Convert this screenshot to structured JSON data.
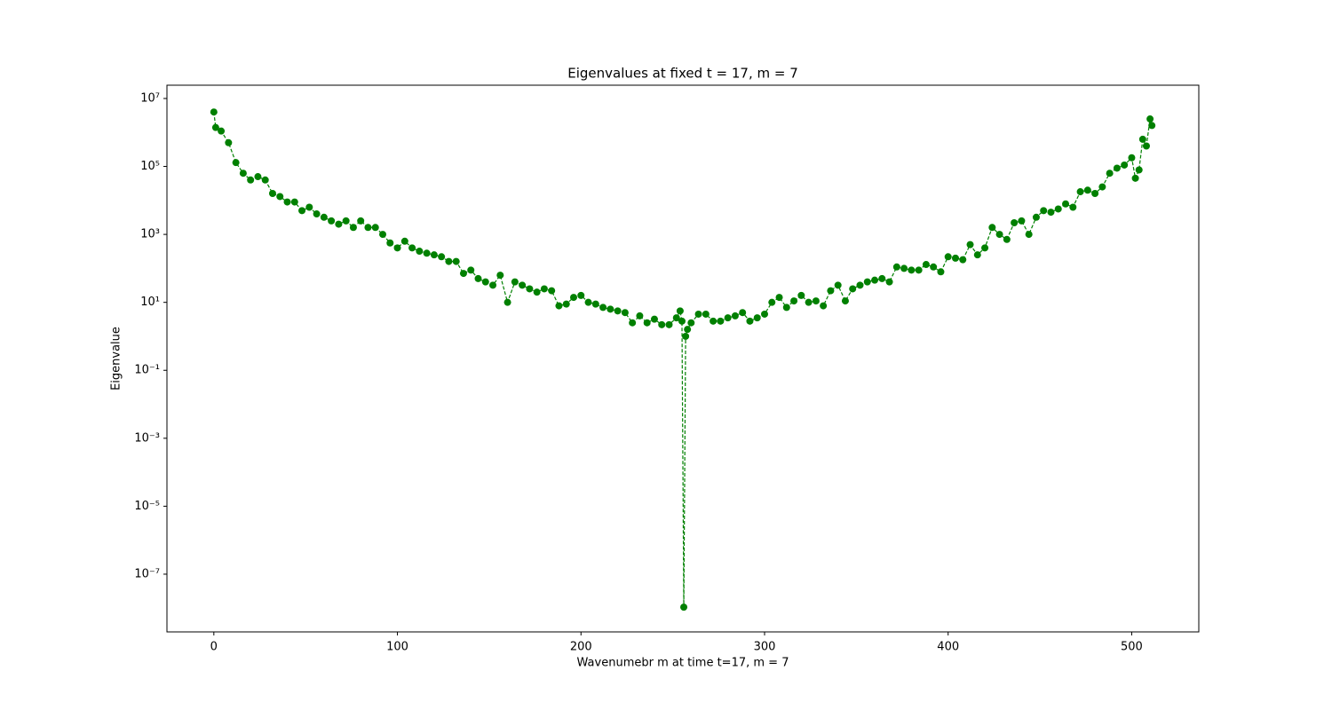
{
  "chart_data": {
    "type": "scatter-line",
    "title": "Eigenvalues at fixed t = 17, m = 7",
    "x_label": "Wavenumebr m at time t=17, m = 7",
    "y_label": "Eigenvalue",
    "color": "#008000",
    "log_y": true,
    "grid": false,
    "xlim": [
      -25.55,
      536.55
    ],
    "xticks": [
      0,
      100,
      200,
      300,
      400,
      500
    ],
    "ylim": [
      2e-09,
      24600000.0
    ],
    "yticks": [
      {
        "value": 1e-07,
        "label": "10⁻⁷"
      },
      {
        "value": 1e-05,
        "label": "10⁻⁵"
      },
      {
        "value": 0.001,
        "label": "10⁻³"
      },
      {
        "value": 0.1,
        "label": "10⁻¹"
      },
      {
        "value": 10,
        "label": "10¹"
      },
      {
        "value": 1000,
        "label": "10³"
      },
      {
        "value": 100000,
        "label": "10⁵"
      },
      {
        "value": 10000000,
        "label": "10⁷"
      }
    ],
    "x": [
      0,
      1,
      4,
      8,
      12,
      16,
      20,
      24,
      28,
      32,
      36,
      40,
      44,
      48,
      52,
      56,
      60,
      64,
      68,
      72,
      76,
      80,
      84,
      88,
      92,
      96,
      100,
      104,
      108,
      112,
      116,
      120,
      124,
      128,
      132,
      136,
      140,
      144,
      148,
      152,
      156,
      160,
      164,
      168,
      172,
      176,
      180,
      184,
      188,
      192,
      196,
      200,
      204,
      208,
      212,
      216,
      220,
      224,
      228,
      232,
      236,
      240,
      244,
      248,
      252,
      254,
      255,
      256,
      257,
      258,
      260,
      264,
      268,
      272,
      276,
      280,
      284,
      288,
      292,
      296,
      300,
      304,
      308,
      312,
      316,
      320,
      324,
      328,
      332,
      336,
      340,
      344,
      348,
      352,
      356,
      360,
      364,
      368,
      372,
      376,
      380,
      384,
      388,
      392,
      396,
      400,
      404,
      408,
      412,
      416,
      420,
      424,
      428,
      432,
      436,
      440,
      444,
      448,
      452,
      456,
      460,
      464,
      468,
      472,
      476,
      480,
      484,
      488,
      492,
      496,
      500,
      502,
      504,
      506,
      508,
      510,
      511
    ],
    "values": [
      4000000.0,
      1400000.0,
      1100000.0,
      500000.0,
      130000.0,
      63000.0,
      40000.0,
      50000.0,
      40000.0,
      16000.0,
      13000.0,
      9000.0,
      9000.0,
      5000.0,
      6300.0,
      4000.0,
      3200.0,
      2500.0,
      2000.0,
      2500.0,
      1600.0,
      2500.0,
      1600.0,
      1600.0,
      1000.0,
      560,
      400,
      630,
      400,
      320,
      280,
      250,
      220,
      160,
      160,
      71,
      89,
      50,
      40,
      32,
      63,
      10,
      40,
      32,
      25,
      20,
      25,
      22,
      7.9,
      8.9,
      14,
      16,
      10,
      8.9,
      7.1,
      6.3,
      5.6,
      5,
      2.5,
      4,
      2.5,
      3.2,
      2.2,
      2.2,
      3.5,
      5.6,
      2.8,
      1.07e-08,
      1,
      1.6,
      2.5,
      4.5,
      4.5,
      2.8,
      2.8,
      3.5,
      4,
      5,
      2.8,
      3.5,
      4.5,
      10,
      14,
      7.1,
      11,
      16,
      10,
      11,
      7.9,
      22,
      32,
      11,
      25,
      32,
      40,
      45,
      50,
      40,
      110,
      100,
      89,
      89,
      130,
      110,
      79,
      220,
      200,
      180,
      500,
      250,
      400,
      1600,
      1000,
      710,
      2200,
      2500,
      1000,
      3200,
      5000,
      4500,
      5600,
      7900,
      6300,
      18000.0,
      20000.0,
      16000.0,
      25000.0,
      63000.0,
      89000.0,
      110000.0,
      180000.0,
      45000.0,
      79000.0,
      630000.0,
      400000.0,
      2500000.0,
      1600000.0
    ]
  }
}
